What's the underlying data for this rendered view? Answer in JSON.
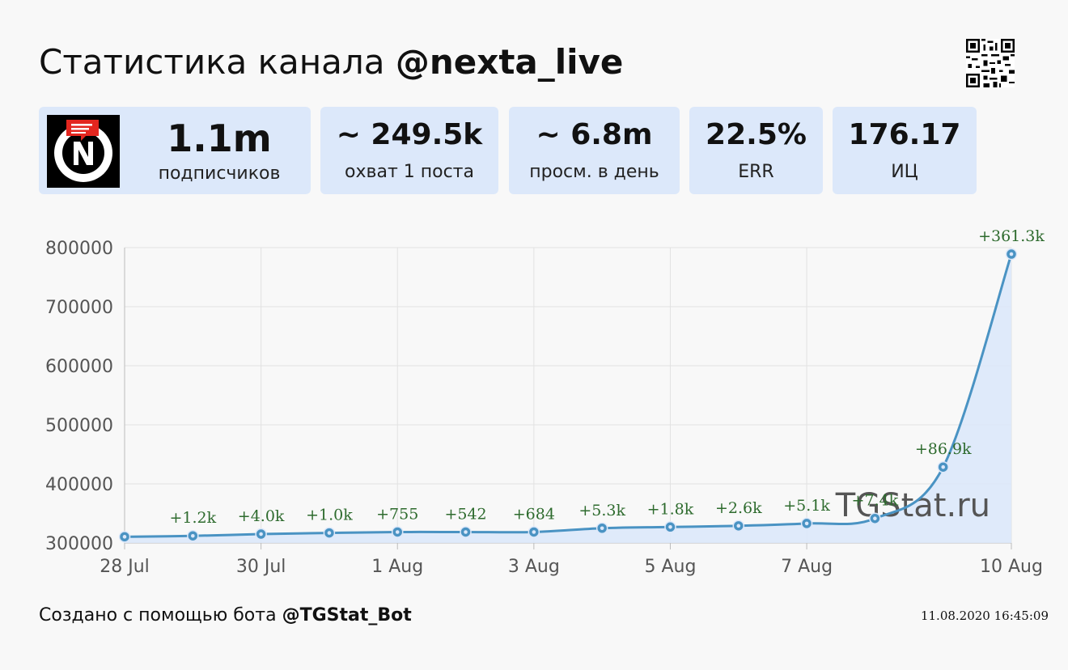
{
  "header": {
    "title_prefix": "Статистика канала",
    "channel": "@nexta_live"
  },
  "stats": [
    {
      "value": "1.1m",
      "label": "подписчиков"
    },
    {
      "value": "~ 249.5k",
      "label": "охват 1 поста"
    },
    {
      "value": "~ 6.8m",
      "label": "просм. в день"
    },
    {
      "value": "22.5%",
      "label": "ERR"
    },
    {
      "value": "176.17",
      "label": "ИЦ"
    }
  ],
  "footer": {
    "created_prefix": "Создано с помощью бота",
    "bot": "@TGStat_Bot",
    "timestamp": "11.08.2020 16:45:09"
  },
  "watermark": "TGStat.ru",
  "colors": {
    "accent": "#4a93c3",
    "fill": "#dce8fa",
    "label_green": "#2e6b2e",
    "card_bg": "#dce8fa"
  },
  "chart_data": {
    "type": "area",
    "x": [
      "28 Jul",
      "29 Jul",
      "30 Jul",
      "31 Jul",
      "1 Aug",
      "2 Aug",
      "3 Aug",
      "4 Aug",
      "5 Aug",
      "6 Aug",
      "7 Aug",
      "8 Aug",
      "9 Aug",
      "10 Aug"
    ],
    "x_tick_labels": [
      "28 Jul",
      "30 Jul",
      "1 Aug",
      "3 Aug",
      "5 Aug",
      "7 Aug",
      "10 Aug"
    ],
    "series": [
      {
        "values": [
          310500,
          312000,
          315000,
          317000,
          318500,
          318500,
          318500,
          325000,
          327000,
          329000,
          333000,
          341500,
          428500,
          789000
        ],
        "annotations": [
          "",
          "+1.2k",
          "+4.0k",
          "+1.0k",
          "+755",
          "+542",
          "+684",
          "+5.3k",
          "+1.8k",
          "+2.6k",
          "+5.1k",
          "+7.4k",
          "+86.9k",
          "+361.3k"
        ]
      }
    ],
    "ylim": [
      300000,
      800000
    ],
    "y_ticks": [
      300000,
      400000,
      500000,
      600000,
      700000,
      800000
    ],
    "grid": true,
    "xlabel": "",
    "ylabel": "",
    "title": ""
  }
}
